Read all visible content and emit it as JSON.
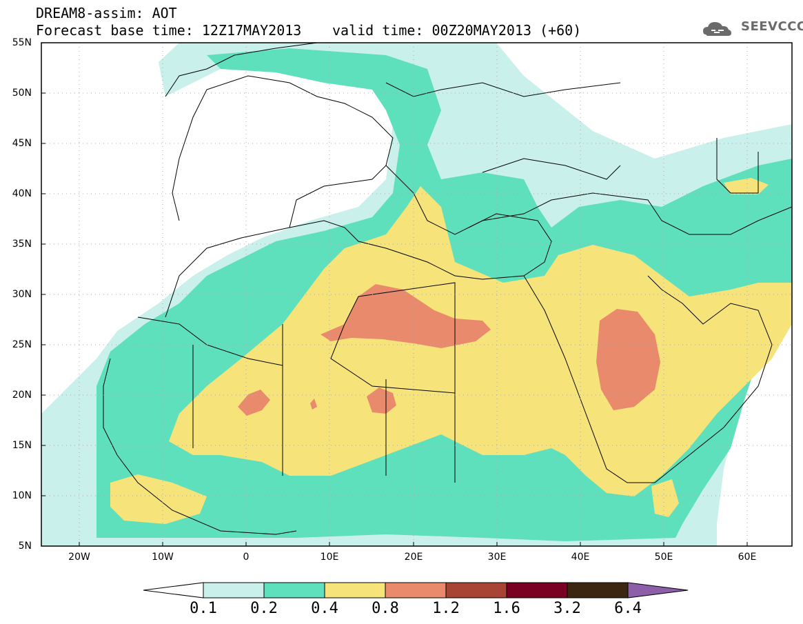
{
  "header": {
    "title": "DREAM8-assim: AOT",
    "base_time": "Forecast base time: 12Z17MAY2013",
    "valid_time": "valid time: 00Z20MAY2013 (+60)"
  },
  "logo": {
    "text": "SEEVCCC",
    "icon": "cloud-icon",
    "color": "#6b6b6b"
  },
  "map": {
    "latitude_labels": [
      "55N",
      "50N",
      "45N",
      "40N",
      "35N",
      "30N",
      "25N",
      "20N",
      "15N",
      "10N",
      "5N"
    ],
    "longitude_labels": [
      "20W",
      "10W",
      "0",
      "10E",
      "20E",
      "30E",
      "40E",
      "50E",
      "60E"
    ],
    "lon_range": [
      -25,
      65
    ],
    "lat_range": [
      5,
      55
    ],
    "grid": "dotted",
    "field": "Aerosol Optical Thickness"
  },
  "colorbar": {
    "levels": [
      "0.1",
      "0.2",
      "0.4",
      "0.8",
      "1.2",
      "1.6",
      "3.2",
      "6.4"
    ],
    "colors": [
      "#ffffff",
      "#c9f0ea",
      "#5fe0bc",
      "#f6e37a",
      "#ea8a6c",
      "#a84434",
      "#7a0022",
      "#3c2612",
      "#8c5fa8"
    ]
  }
}
